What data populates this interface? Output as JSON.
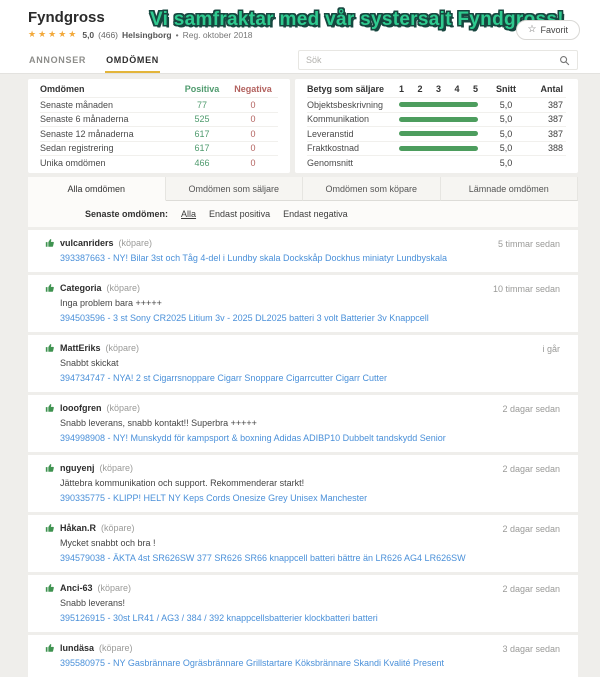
{
  "header": {
    "shop_name": "Fyndgross",
    "stars": "★★★★★",
    "rating_value": "5,0",
    "rating_count": "(466)",
    "location": "Helsingborg",
    "separator": "•",
    "registered": "Reg. oktober 2018",
    "banner_text": "Vi samfraktar med vår systersajt Fyndgross!",
    "favorite_label": "Favorit",
    "nav_tabs": [
      {
        "label": "ANNONSER",
        "active": false
      },
      {
        "label": "OMDÖMEN",
        "active": true
      }
    ],
    "search_placeholder": "Sök"
  },
  "colors": {
    "positive_green": "#4f9b6e",
    "negative_red": "#b3625f",
    "bar_green": "#4d9d5e",
    "star_gold": "#f2a93b",
    "tab_underline_gold": "#e3b53a",
    "banner_green": "#2fca8f",
    "banner_outline": "#17463f",
    "link_blue": "#4a90d9"
  },
  "summary_table": {
    "title": "Omdömen",
    "col_positive": "Positiva",
    "col_negative": "Negativa",
    "rows": [
      {
        "label": "Senaste månaden",
        "positive": "77",
        "negative": "0"
      },
      {
        "label": "Senaste 6 månaderna",
        "positive": "525",
        "negative": "0"
      },
      {
        "label": "Senaste 12 månaderna",
        "positive": "617",
        "negative": "0"
      },
      {
        "label": "Sedan registrering",
        "positive": "617",
        "negative": "0"
      },
      {
        "label": "Unika omdömen",
        "positive": "466",
        "negative": "0"
      }
    ]
  },
  "rating_table": {
    "title": "Betyg som säljare",
    "scale": [
      "1",
      "2",
      "3",
      "4",
      "5"
    ],
    "col_avg": "Snitt",
    "col_count": "Antal",
    "rows": [
      {
        "label": "Objektsbeskrivning",
        "bar": 100,
        "avg": "5,0",
        "count": "387"
      },
      {
        "label": "Kommunikation",
        "bar": 100,
        "avg": "5,0",
        "count": "387"
      },
      {
        "label": "Leveranstid",
        "bar": 100,
        "avg": "5,0",
        "count": "387"
      },
      {
        "label": "Fraktkostnad",
        "bar": 100,
        "avg": "5,0",
        "count": "388"
      },
      {
        "label": "Genomsnitt",
        "bar": null,
        "avg": "5,0",
        "count": ""
      }
    ]
  },
  "review_tabs": [
    {
      "label": "Alla omdömen",
      "active": true
    },
    {
      "label": "Omdömen som säljare",
      "active": false
    },
    {
      "label": "Omdömen som köpare",
      "active": false
    },
    {
      "label": "Lämnade omdömen",
      "active": false
    }
  ],
  "filter": {
    "label": "Senaste omdömen:",
    "options": [
      {
        "label": "Alla",
        "active": true
      },
      {
        "label": "Endast positiva",
        "active": false
      },
      {
        "label": "Endast negativa",
        "active": false
      }
    ]
  },
  "reviews": [
    {
      "user": "vulcanriders",
      "role": "(köpare)",
      "comment": "",
      "item": "393387663 - NY! Bilar 3st och Tåg 4-del i Lundby skala Dockskåp Dockhus miniatyr Lundbyskala",
      "time": "5 timmar sedan"
    },
    {
      "user": "Categoria",
      "role": "(köpare)",
      "comment": "Inga problem bara +++++",
      "item": "394503596 - 3 st Sony CR2025 Litium 3v - 2025 DL2025 batteri 3 volt Batterier 3v Knappcell",
      "time": "10 timmar sedan"
    },
    {
      "user": "MattEriks",
      "role": "(köpare)",
      "comment": "Snabbt skickat",
      "item": "394734747 - NYA! 2 st Cigarrsnoppare Cigarr Snoppare Cigarrcutter Cigarr Cutter",
      "time": "i går"
    },
    {
      "user": "looofgren",
      "role": "(köpare)",
      "comment": "Snabb leverans, snabb kontakt!! Superbra +++++",
      "item": "394998908 - NY! Munskydd för kampsport & boxning Adidas ADIBP10 Dubbelt tandskydd Senior",
      "time": "2 dagar sedan"
    },
    {
      "user": "nguyenj",
      "role": "(köpare)",
      "comment": "Jättebra kommunikation och support. Rekommenderar starkt!",
      "item": "390335775 - KLIPP! HELT NY Keps Cords Onesize Grey Unisex Manchester",
      "time": "2 dagar sedan"
    },
    {
      "user": "Håkan.R",
      "role": "(köpare)",
      "comment": "Mycket snabbt och bra !",
      "item": "394579038 - ÄKTA 4st SR626SW 377 SR626 SR66 knappcell batteri bättre än LR626 AG4 LR626SW",
      "time": "2 dagar sedan"
    },
    {
      "user": "Anci-63",
      "role": "(köpare)",
      "comment": "Snabb leverans!",
      "item": "395126915 - 30st LR41 / AG3 / 384 / 392 knappcellsbatterier klockbatteri batteri",
      "time": "2 dagar sedan"
    },
    {
      "user": "lundäsa",
      "role": "(köpare)",
      "comment": "",
      "item": "395580975 - NY Gasbrännare Ogräsbrännare Grillstartare Köksbrännare Skandi Kvalité Present",
      "time": "3 dagar sedan"
    }
  ]
}
